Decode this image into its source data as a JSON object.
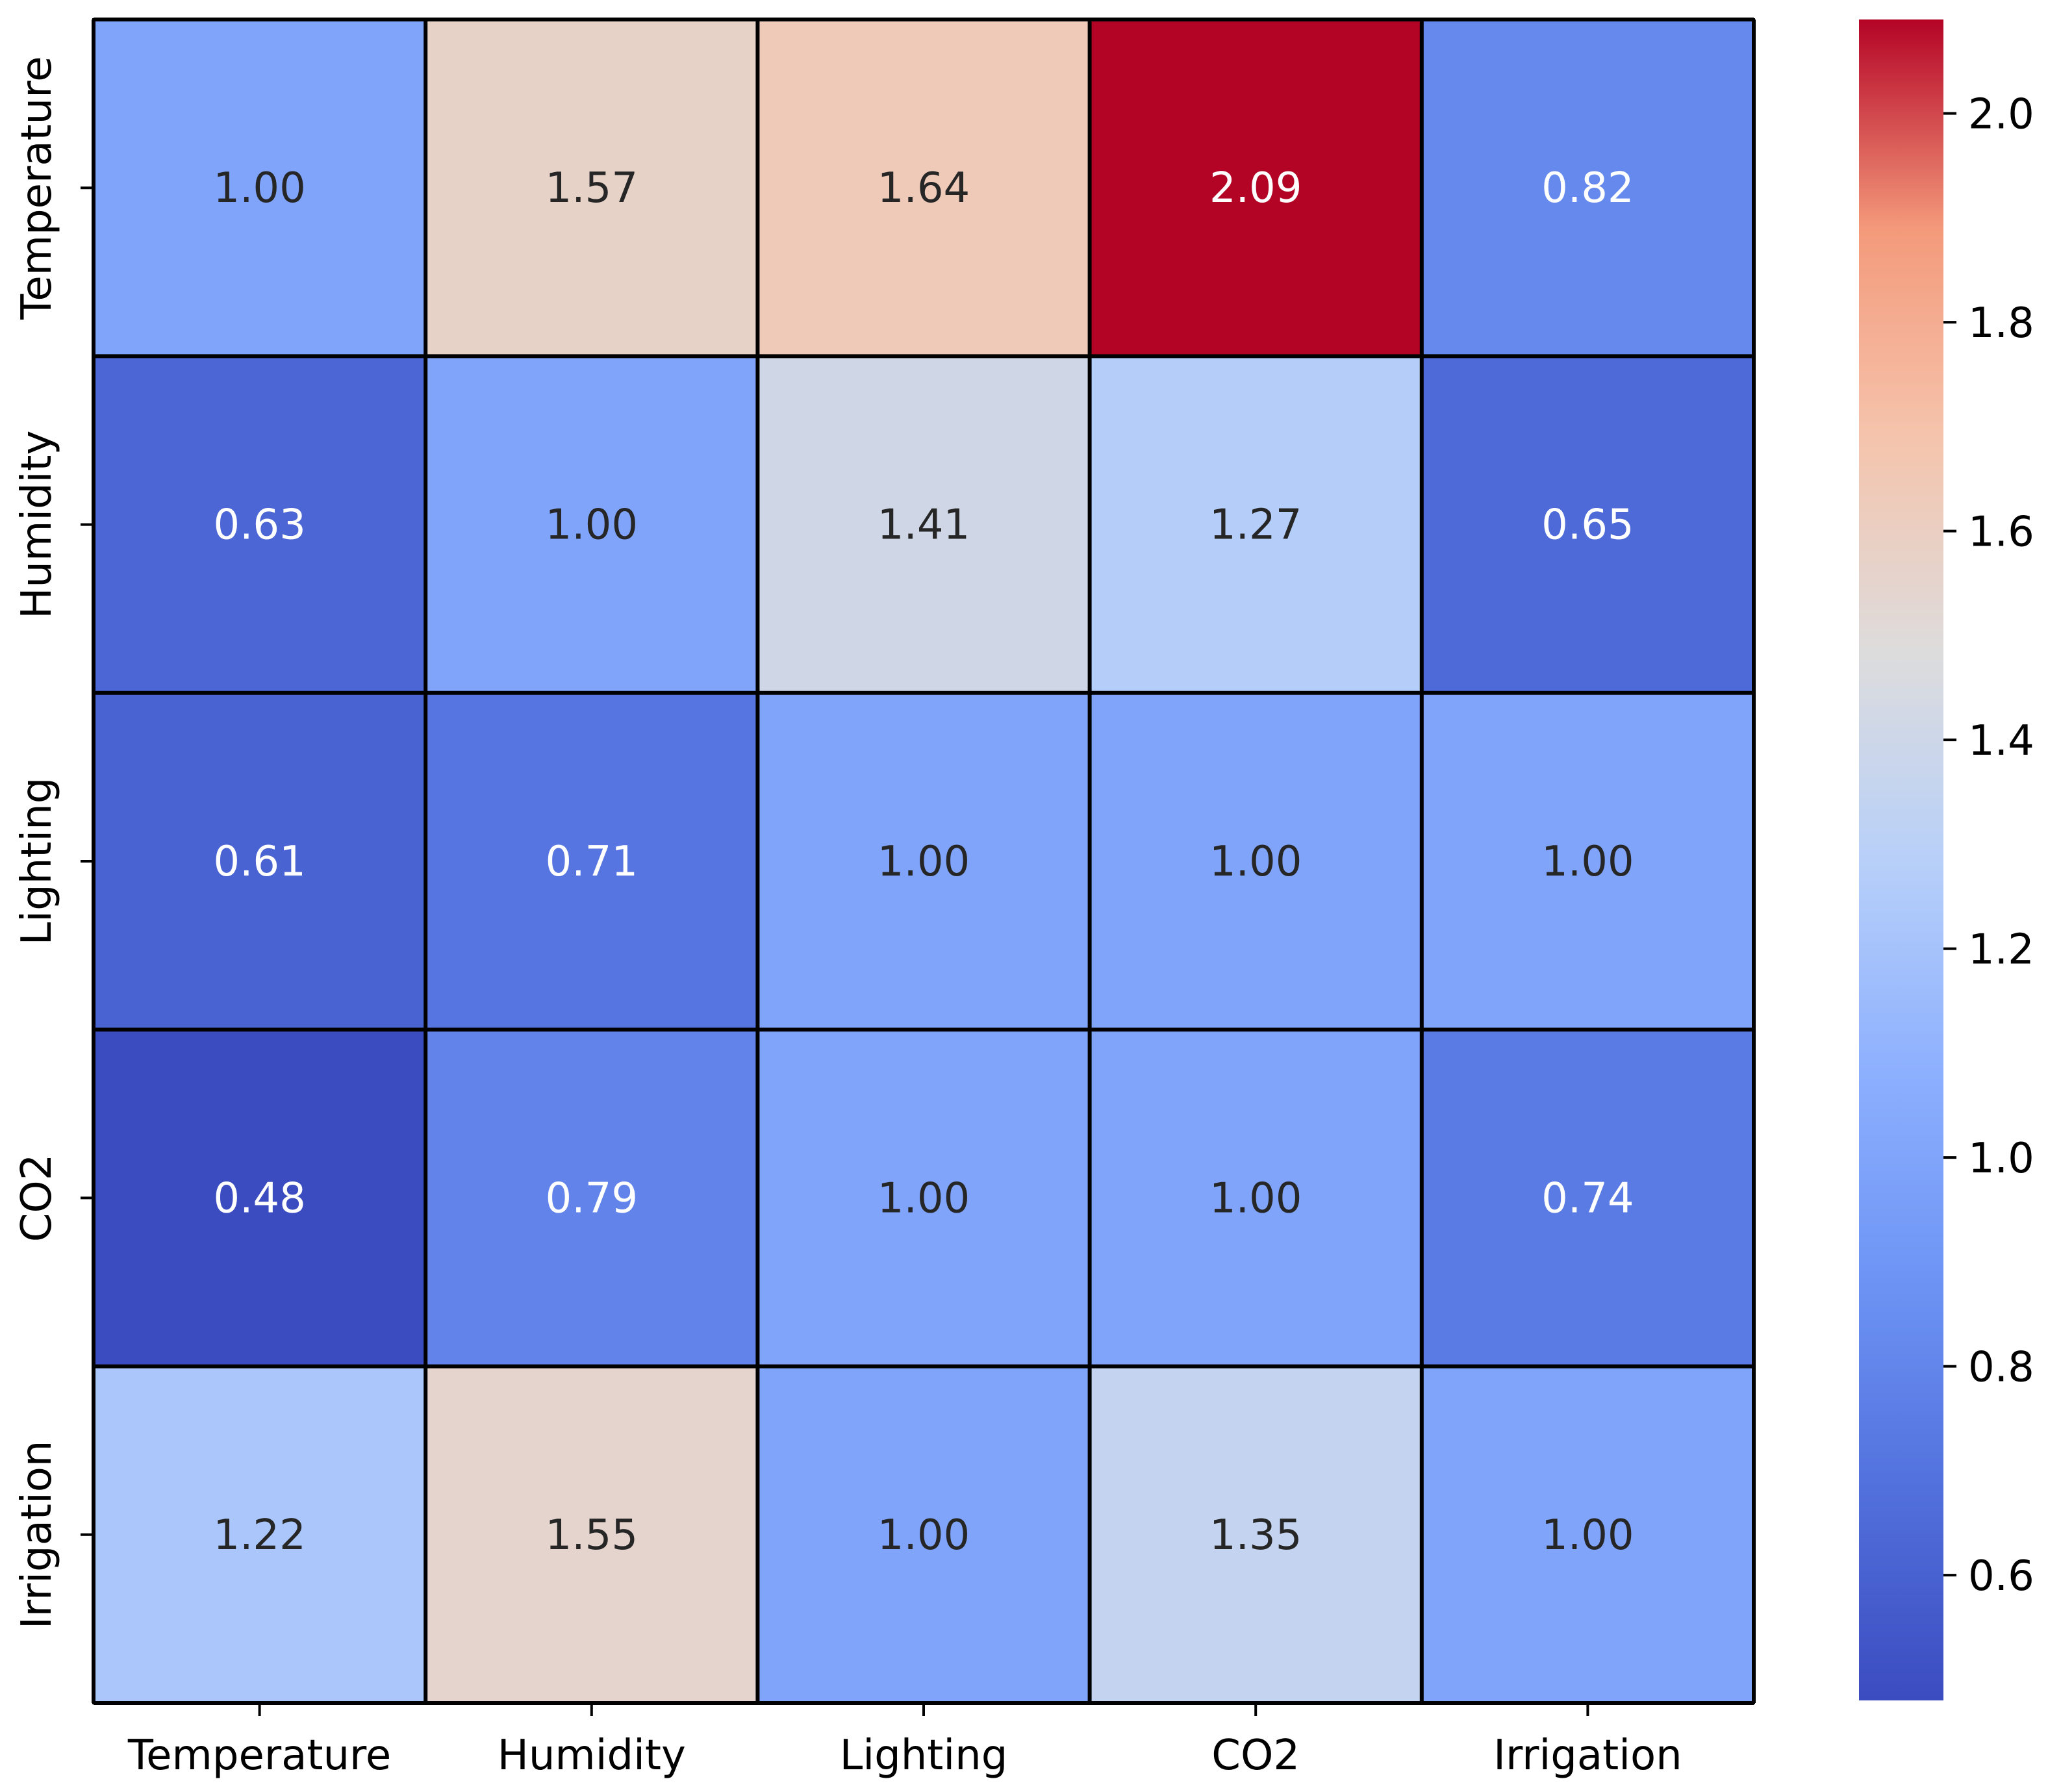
{
  "chart_data": {
    "type": "heatmap",
    "title": "",
    "xlabel": "",
    "ylabel": "",
    "x_categories": [
      "Temperature",
      "Humidity",
      "Lighting",
      "CO2",
      "Irrigation"
    ],
    "y_categories": [
      "Temperature",
      "Humidity",
      "Lighting",
      "CO2",
      "Irrigation"
    ],
    "values": [
      [
        1.0,
        1.57,
        1.64,
        2.09,
        0.82
      ],
      [
        0.63,
        1.0,
        1.41,
        1.27,
        0.65
      ],
      [
        0.61,
        0.71,
        1.0,
        1.0,
        1.0
      ],
      [
        0.48,
        0.79,
        1.0,
        1.0,
        0.74
      ],
      [
        1.22,
        1.55,
        1.0,
        1.35,
        1.0
      ]
    ],
    "value_labels": [
      [
        "1.00",
        "1.57",
        "1.64",
        "2.09",
        "0.82"
      ],
      [
        "0.63",
        "1.00",
        "1.41",
        "1.27",
        "0.65"
      ],
      [
        "0.61",
        "0.71",
        "1.00",
        "1.00",
        "1.00"
      ],
      [
        "0.48",
        "0.79",
        "1.00",
        "1.00",
        "0.74"
      ],
      [
        "1.22",
        "1.55",
        "1.00",
        "1.35",
        "1.00"
      ]
    ],
    "colormap": "coolwarm",
    "color_range": [
      0.48,
      2.09
    ],
    "colorbar": {
      "ticks": [
        0.6,
        0.8,
        1.0,
        1.2,
        1.4,
        1.6,
        1.8,
        2.0
      ],
      "tick_labels": [
        "0.6",
        "0.8",
        "1.0",
        "1.2",
        "1.4",
        "1.6",
        "1.8",
        "2.0"
      ]
    },
    "grid": false,
    "legend": "colorbar-right"
  }
}
